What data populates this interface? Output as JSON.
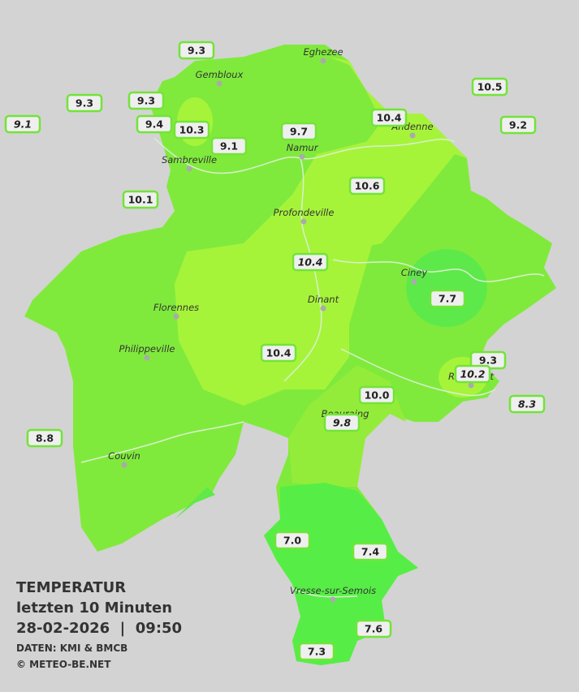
{
  "title": {
    "heading": "TEMPERATUR",
    "period": "letzten 10 Minuten",
    "timestamp": "28-02-2026  |  09:50",
    "source": "DATEN: KMI & BMCB",
    "copyright": "© METEO-BE.NET"
  },
  "cities": [
    "Eghezee",
    "Gembloux",
    "Andenne",
    "Namur",
    "Sambreville",
    "Profondeville",
    "Ciney",
    "Dinant",
    "Florennes",
    "Philippeville",
    "Rochefort",
    "Beauraing",
    "Couvin",
    "Vresse-sur-Semois"
  ],
  "stations": [
    {
      "label": "9.3",
      "italic": false
    },
    {
      "label": "10.5",
      "italic": false
    },
    {
      "label": "9.3",
      "italic": false
    },
    {
      "label": "9.3",
      "italic": false
    },
    {
      "label": "9.1",
      "italic": true
    },
    {
      "label": "9.4",
      "italic": false
    },
    {
      "label": "10.3",
      "italic": false
    },
    {
      "label": "10.4",
      "italic": false
    },
    {
      "label": "9.2",
      "italic": false
    },
    {
      "label": "9.7",
      "italic": false
    },
    {
      "label": "9.1",
      "italic": false
    },
    {
      "label": "10.6",
      "italic": false
    },
    {
      "label": "10.1",
      "italic": false
    },
    {
      "label": "10.4",
      "italic": true
    },
    {
      "label": "7.7",
      "italic": false
    },
    {
      "label": "10.4",
      "italic": false
    },
    {
      "label": "9.3",
      "italic": false
    },
    {
      "label": "10.2",
      "italic": true
    },
    {
      "label": "10.0",
      "italic": false
    },
    {
      "label": "8.3",
      "italic": true
    },
    {
      "label": "9.8",
      "italic": true
    },
    {
      "label": "8.8",
      "italic": false
    },
    {
      "label": "7.0",
      "italic": false
    },
    {
      "label": "7.4",
      "italic": false
    },
    {
      "label": "7.6",
      "italic": false
    },
    {
      "label": "7.3",
      "italic": false
    }
  ]
}
